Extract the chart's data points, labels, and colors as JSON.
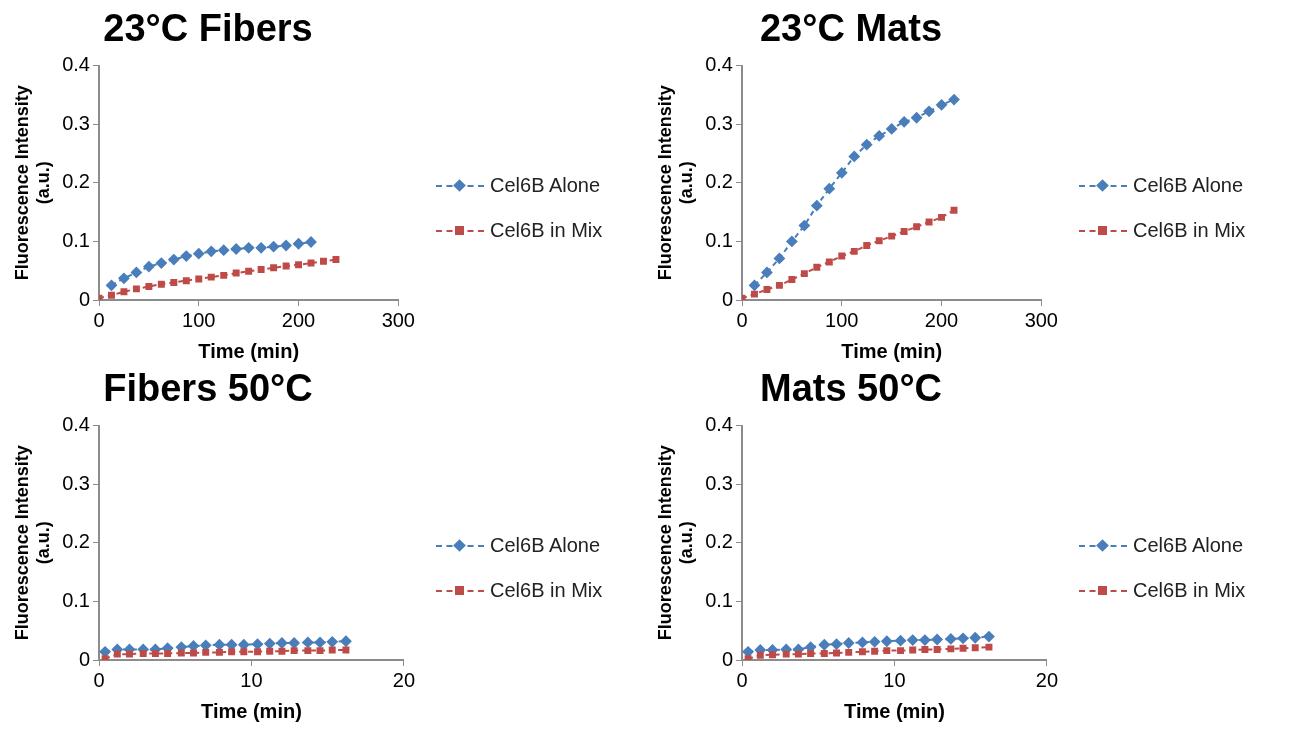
{
  "chart_data": [
    {
      "type": "line",
      "title": "23°C Fibers",
      "xlabel": "Time (min)",
      "ylabel": "Fluorescence Intensity (a.u.)",
      "xlim": [
        0,
        300
      ],
      "xticks": [
        0,
        100,
        200,
        300
      ],
      "ylim": [
        0,
        0.4
      ],
      "yticks": [
        0,
        0.1,
        0.2,
        0.3,
        0.4
      ],
      "grid": false,
      "legend": "right",
      "line_style": "dashed",
      "series": [
        {
          "name": "Cel6B Alone",
          "color": "#4a7ebb",
          "marker": "diamond",
          "x": [
            12.5,
            25,
            37.5,
            50,
            62.5,
            75,
            87.5,
            100,
            112.5,
            125,
            137.5,
            150,
            162.5,
            175,
            187.5,
            200,
            212.5
          ],
          "values": [
            0.025,
            0.037,
            0.047,
            0.057,
            0.063,
            0.069,
            0.075,
            0.079,
            0.083,
            0.085,
            0.087,
            0.089,
            0.089,
            0.091,
            0.093,
            0.096,
            0.099
          ]
        },
        {
          "name": "Cel6B in Mix",
          "color": "#be4b48",
          "marker": "square",
          "x": [
            0,
            12.5,
            25,
            37.5,
            50,
            62.5,
            75,
            87.5,
            100,
            112.5,
            125,
            137.5,
            150,
            162.5,
            175,
            187.5,
            200,
            212.5,
            225,
            237.5
          ],
          "values": [
            0.003,
            0.008,
            0.014,
            0.019,
            0.023,
            0.027,
            0.03,
            0.033,
            0.036,
            0.039,
            0.042,
            0.046,
            0.049,
            0.052,
            0.055,
            0.058,
            0.06,
            0.063,
            0.066,
            0.069
          ]
        }
      ]
    },
    {
      "type": "line",
      "title": "23°C Mats",
      "xlabel": "Time (min)",
      "ylabel": "Fluorescence Intensity (a.u.)",
      "xlim": [
        0,
        300
      ],
      "xticks": [
        0,
        100,
        200,
        300
      ],
      "ylim": [
        0,
        0.4
      ],
      "yticks": [
        0,
        0.1,
        0.2,
        0.3,
        0.4
      ],
      "grid": false,
      "legend": "right",
      "line_style": "dashed",
      "series": [
        {
          "name": "Cel6B Alone",
          "color": "#4a7ebb",
          "marker": "diamond",
          "x": [
            12.5,
            25,
            37.5,
            50,
            62.5,
            75,
            87.5,
            100,
            112.5,
            125,
            137.5,
            150,
            162.5,
            175,
            187.5,
            200,
            212.5
          ],
          "values": [
            0.025,
            0.047,
            0.071,
            0.1,
            0.127,
            0.161,
            0.19,
            0.217,
            0.245,
            0.265,
            0.28,
            0.292,
            0.304,
            0.311,
            0.322,
            0.333,
            0.342
          ]
        },
        {
          "name": "Cel6B in Mix",
          "color": "#be4b48",
          "marker": "square",
          "x": [
            0,
            12.5,
            25,
            37.5,
            50,
            62.5,
            75,
            87.5,
            100,
            112.5,
            125,
            137.5,
            150,
            162.5,
            175,
            187.5,
            200,
            212.5
          ],
          "values": [
            0.003,
            0.01,
            0.018,
            0.025,
            0.035,
            0.045,
            0.056,
            0.065,
            0.075,
            0.083,
            0.093,
            0.101,
            0.109,
            0.117,
            0.125,
            0.133,
            0.141,
            0.153
          ]
        }
      ]
    },
    {
      "type": "line",
      "title": "Fibers 50°C",
      "xlabel": "Time (min)",
      "ylabel": "Fluorescence Intensity (a.u.)",
      "xlim": [
        0,
        20
      ],
      "xticks": [
        0,
        10,
        20
      ],
      "ylim": [
        0,
        0.4
      ],
      "yticks": [
        0,
        0.1,
        0.2,
        0.3,
        0.4
      ],
      "grid": false,
      "legend": "right",
      "line_style": "dashed",
      "series": [
        {
          "name": "Cel6B Alone",
          "color": "#4a7ebb",
          "marker": "diamond",
          "x": [
            0.4,
            1.2,
            2.0,
            2.9,
            3.7,
            4.5,
            5.4,
            6.2,
            7.0,
            7.9,
            8.7,
            9.5,
            10.4,
            11.2,
            12.0,
            12.8,
            13.7,
            14.5,
            15.3,
            16.2
          ],
          "values": [
            0.014,
            0.018,
            0.018,
            0.018,
            0.018,
            0.02,
            0.022,
            0.024,
            0.025,
            0.026,
            0.026,
            0.026,
            0.027,
            0.028,
            0.029,
            0.029,
            0.03,
            0.03,
            0.031,
            0.032
          ]
        },
        {
          "name": "Cel6B in Mix",
          "color": "#be4b48",
          "marker": "square",
          "x": [
            0.4,
            1.2,
            2.0,
            2.9,
            3.7,
            4.5,
            5.4,
            6.2,
            7.0,
            7.9,
            8.7,
            9.5,
            10.4,
            11.2,
            12.0,
            12.8,
            13.7,
            14.5,
            15.3,
            16.2
          ],
          "values": [
            0.002,
            0.01,
            0.01,
            0.011,
            0.011,
            0.011,
            0.012,
            0.012,
            0.013,
            0.013,
            0.014,
            0.014,
            0.014,
            0.015,
            0.015,
            0.016,
            0.016,
            0.016,
            0.017,
            0.017
          ]
        }
      ]
    },
    {
      "type": "line",
      "title": "Mats 50°C",
      "xlabel": "Time (min)",
      "ylabel": "Fluorescence Intensity (a.u.)",
      "xlim": [
        0,
        20
      ],
      "xticks": [
        0,
        10,
        20
      ],
      "ylim": [
        0,
        0.4
      ],
      "yticks": [
        0,
        0.1,
        0.2,
        0.3,
        0.4
      ],
      "grid": false,
      "legend": "right",
      "line_style": "dashed",
      "series": [
        {
          "name": "Cel6B Alone",
          "color": "#4a7ebb",
          "marker": "diamond",
          "x": [
            0.4,
            1.2,
            2.0,
            2.9,
            3.7,
            4.5,
            5.4,
            6.2,
            7.0,
            7.9,
            8.7,
            9.5,
            10.4,
            11.2,
            12.0,
            12.8,
            13.7,
            14.5,
            15.3,
            16.2
          ],
          "values": [
            0.014,
            0.017,
            0.017,
            0.018,
            0.018,
            0.022,
            0.026,
            0.027,
            0.029,
            0.03,
            0.031,
            0.032,
            0.033,
            0.034,
            0.034,
            0.035,
            0.036,
            0.037,
            0.038,
            0.04
          ]
        },
        {
          "name": "Cel6B in Mix",
          "color": "#be4b48",
          "marker": "square",
          "x": [
            0.4,
            1.2,
            2.0,
            2.9,
            3.7,
            4.5,
            5.4,
            6.2,
            7.0,
            7.9,
            8.7,
            9.5,
            10.4,
            11.2,
            12.0,
            12.8,
            13.7,
            14.5,
            15.3,
            16.2
          ],
          "values": [
            0.002,
            0.008,
            0.009,
            0.01,
            0.01,
            0.011,
            0.011,
            0.012,
            0.013,
            0.014,
            0.015,
            0.016,
            0.016,
            0.017,
            0.018,
            0.018,
            0.019,
            0.02,
            0.021,
            0.022
          ]
        }
      ]
    }
  ]
}
